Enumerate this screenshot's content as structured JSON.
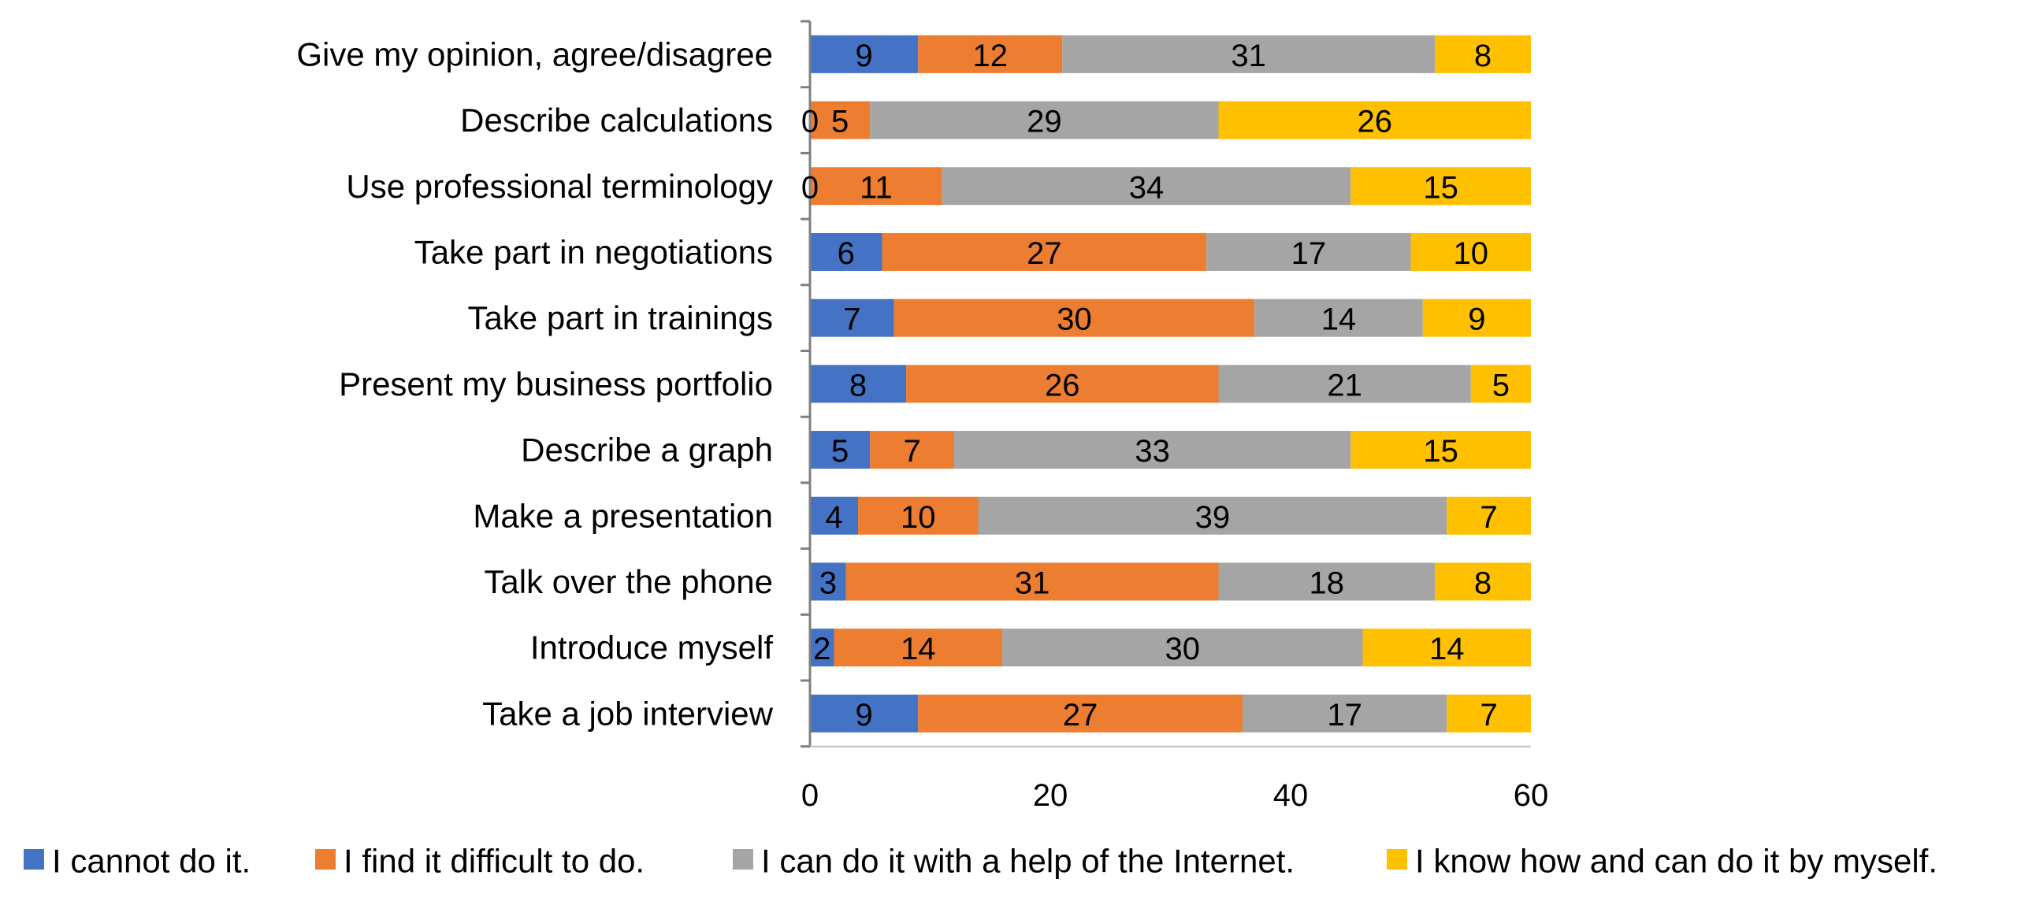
{
  "chart_data": {
    "type": "bar",
    "orientation": "horizontal",
    "stacked": true,
    "categories": [
      "Give my opinion, agree/disagree",
      "Describe calculations",
      "Use professional terminology",
      "Take part in negotiations",
      "Take part in trainings",
      "Present my business portfolio",
      "Describe a graph",
      "Make a presentation",
      "Talk over the phone",
      "Introduce myself",
      "Take a job interview"
    ],
    "series": [
      {
        "name": "I cannot do it.",
        "color": "#4472C4",
        "values": [
          9,
          0,
          0,
          6,
          7,
          8,
          5,
          4,
          3,
          2,
          9
        ]
      },
      {
        "name": "I find it difficult to do.",
        "color": "#ED7D31",
        "values": [
          12,
          5,
          11,
          27,
          30,
          26,
          7,
          10,
          31,
          14,
          27
        ]
      },
      {
        "name": "I can do it with a help of the Internet.",
        "color": "#A5A5A5",
        "values": [
          31,
          29,
          34,
          17,
          14,
          21,
          33,
          39,
          18,
          30,
          17
        ]
      },
      {
        "name": "I know how and can do it by myself.",
        "color": "#FFC000",
        "values": [
          8,
          26,
          15,
          10,
          9,
          5,
          15,
          7,
          8,
          14,
          7
        ]
      }
    ],
    "xlim": [
      0,
      60
    ],
    "xticks": [
      "0",
      "20",
      "40",
      "60"
    ],
    "title": "",
    "xlabel": "",
    "ylabel": "",
    "grid": false,
    "legend": "bottom"
  }
}
